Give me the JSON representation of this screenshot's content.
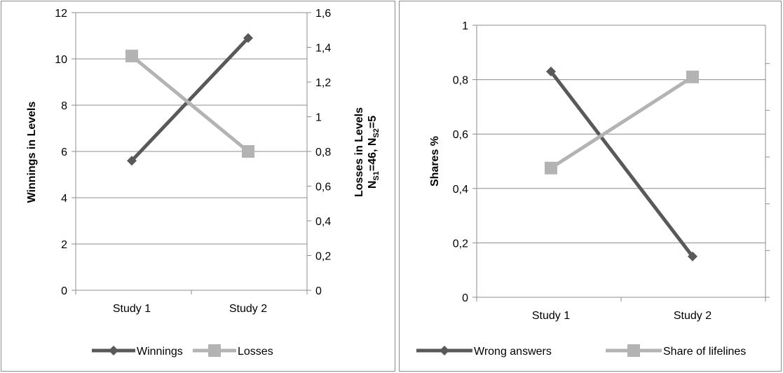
{
  "chart_data": [
    {
      "type": "line",
      "categories": [
        "Study 1",
        "Study 2"
      ],
      "series": [
        {
          "name": "Winnings",
          "values": [
            5.6,
            10.9
          ],
          "axis": "left",
          "color": "#595959",
          "marker": "diamond"
        },
        {
          "name": "Losses",
          "values": [
            1.35,
            0.8
          ],
          "axis": "right",
          "color": "#b3b3b3",
          "marker": "square"
        }
      ],
      "title": "",
      "ylabel": "Winnings in Levels",
      "y2label_line1": "Losses in Levels",
      "y2label_line2": "N",
      "y2label_sub1": "S1",
      "y2label_mid": "=46, N",
      "y2label_sub2": "S2",
      "y2label_end": "=5",
      "ylim": [
        0,
        12
      ],
      "y2lim": [
        0,
        1.6
      ],
      "yticks": [
        "0",
        "2",
        "4",
        "6",
        "8",
        "10",
        "12"
      ],
      "y2ticks": [
        "0",
        "0,2",
        "0,4",
        "0,6",
        "0,8",
        "1",
        "1,2",
        "1,4",
        "1,6"
      ],
      "grid": true,
      "legend_position": "bottom"
    },
    {
      "type": "line",
      "categories": [
        "Study 1",
        "Study 2"
      ],
      "series": [
        {
          "name": "Wrong answers",
          "values": [
            0.83,
            0.15
          ],
          "color": "#595959",
          "marker": "diamond"
        },
        {
          "name": "Share of lifelines",
          "values": [
            0.475,
            0.81
          ],
          "color": "#b3b3b3",
          "marker": "square"
        }
      ],
      "title": "",
      "ylabel": "Shares %",
      "ylim": [
        0,
        1
      ],
      "yticks": [
        "0",
        "0,2",
        "0,4",
        "0,6",
        "0,8",
        "1"
      ],
      "grid": true,
      "legend_position": "bottom"
    }
  ]
}
